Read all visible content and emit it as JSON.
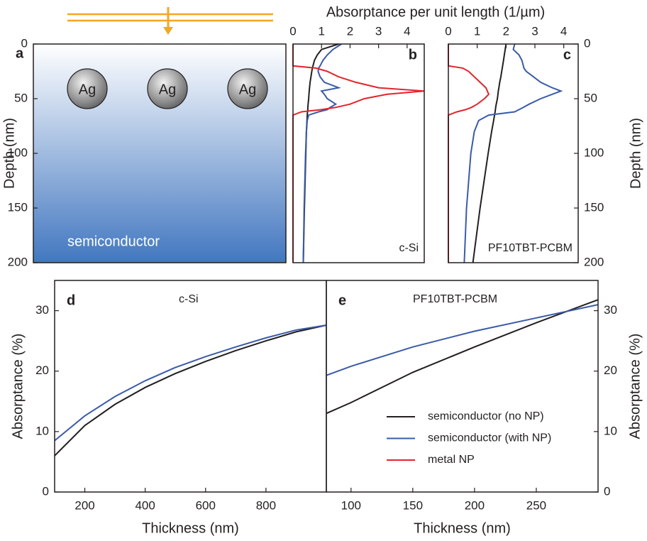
{
  "chart_data": [
    {
      "type": "schematic",
      "panel_label": "a",
      "ylabel": "Depth (nm)",
      "ylim": [
        0,
        200
      ],
      "yticks": [
        0,
        50,
        100,
        150,
        200
      ],
      "particles": [
        "Ag",
        "Ag",
        "Ag"
      ],
      "material": "semiconductor"
    },
    {
      "type": "profile",
      "panel_label": "b",
      "title": "c-Si",
      "xlabel": "Absorptance per unit length (1/µm)",
      "xlim": [
        0,
        4.6
      ],
      "xticks": [
        0,
        1,
        2,
        3,
        4
      ],
      "ylim": [
        0,
        200
      ],
      "depth": [
        0,
        5,
        10,
        15,
        20,
        22,
        25,
        30,
        35,
        40,
        43,
        46,
        50,
        55,
        58,
        60,
        62,
        65,
        70,
        80,
        100,
        150,
        200
      ],
      "series": [
        {
          "color": "#231f20",
          "values": [
            1.6,
            1.0,
            0.85,
            0.75,
            0.7,
            0.68,
            0.66,
            0.63,
            0.6,
            0.58,
            0.57,
            0.56,
            0.55,
            0.53,
            0.52,
            0.52,
            0.51,
            0.5,
            0.49,
            0.47,
            0.45,
            0.4,
            0.36
          ]
        },
        {
          "color": "#3a5ba8",
          "values": [
            1.7,
            1.4,
            1.2,
            1.05,
            0.95,
            0.9,
            0.88,
            0.95,
            1.1,
            1.6,
            1.0,
            1.1,
            1.2,
            1.5,
            1.3,
            1.2,
            0.9,
            0.55,
            0.5,
            0.47,
            0.44,
            0.39,
            0.36
          ]
        },
        {
          "color": "#e3242b",
          "values": [
            0,
            0,
            0,
            0,
            0,
            0.8,
            1.2,
            1.6,
            2.2,
            3.0,
            4.6,
            3.3,
            2.5,
            2.0,
            1.5,
            1.0,
            0.3,
            0,
            0,
            0,
            0,
            0,
            0
          ]
        }
      ]
    },
    {
      "type": "profile",
      "panel_label": "c",
      "title": "PF10TBT-PCBM",
      "ylabel": "Depth (nm)",
      "xlim": [
        0,
        4.5
      ],
      "xticks": [
        0,
        1,
        2,
        3,
        4
      ],
      "ylim": [
        0,
        200
      ],
      "yticks": [
        0,
        50,
        100,
        150,
        200
      ],
      "depth": [
        0,
        5,
        10,
        15,
        20,
        22,
        25,
        30,
        35,
        40,
        43,
        46,
        50,
        55,
        58,
        60,
        62,
        65,
        70,
        80,
        100,
        150,
        200
      ],
      "series": [
        {
          "color": "#231f20",
          "values": [
            2.0,
            1.97,
            1.94,
            1.91,
            1.88,
            1.87,
            1.85,
            1.82,
            1.78,
            1.75,
            1.73,
            1.72,
            1.7,
            1.66,
            1.64,
            1.63,
            1.62,
            1.6,
            1.57,
            1.5,
            1.38,
            1.1,
            0.85
          ]
        },
        {
          "color": "#3a5ba8",
          "values": [
            2.3,
            2.25,
            2.45,
            2.55,
            2.6,
            2.62,
            2.7,
            2.95,
            3.2,
            3.6,
            3.9,
            3.6,
            3.2,
            2.8,
            2.6,
            2.45,
            2.3,
            1.4,
            1.05,
            0.9,
            0.78,
            0.63,
            0.55
          ]
        },
        {
          "color": "#e3242b",
          "values": [
            0,
            0,
            0,
            0,
            0,
            0.5,
            0.7,
            0.9,
            1.1,
            1.3,
            1.35,
            1.4,
            1.25,
            1.0,
            0.8,
            0.6,
            0.3,
            0,
            0,
            0,
            0,
            0,
            0
          ]
        }
      ]
    },
    {
      "type": "line",
      "panel_label": "d",
      "title": "c-Si",
      "xlabel": "Thickness (nm)",
      "ylabel": "Absorptance (%)",
      "x": [
        100,
        200,
        300,
        400,
        500,
        600,
        700,
        800,
        900,
        1000
      ],
      "xlim": [
        100,
        1000
      ],
      "xticks": [
        200,
        400,
        600,
        800
      ],
      "ylim": [
        0,
        35
      ],
      "yticks": [
        0,
        10,
        20,
        30
      ],
      "series": [
        {
          "color": "#231f20",
          "values": [
            6,
            11,
            14.5,
            17.3,
            19.6,
            21.6,
            23.4,
            25,
            26.5,
            27.6
          ]
        },
        {
          "color": "#3a5ba8",
          "values": [
            8.5,
            12.6,
            15.8,
            18.4,
            20.6,
            22.4,
            24,
            25.5,
            26.8,
            27.6
          ]
        }
      ]
    },
    {
      "type": "line",
      "panel_label": "e",
      "title": "PF10TBT-PCBM",
      "xlabel": "Thickness (nm)",
      "ylabel": "Absorptance (%)",
      "x": [
        80,
        100,
        150,
        200,
        250,
        300
      ],
      "xlim": [
        80,
        300
      ],
      "xticks": [
        100,
        150,
        200,
        250
      ],
      "ylim": [
        0,
        35
      ],
      "yticks": [
        0,
        10,
        20,
        30
      ],
      "series": [
        {
          "color": "#231f20",
          "values": [
            13,
            14.8,
            19.8,
            24,
            28,
            31.8
          ]
        },
        {
          "color": "#3a5ba8",
          "values": [
            19.3,
            20.8,
            24,
            26.6,
            28.8,
            31
          ]
        }
      ],
      "legend": [
        {
          "name": "semiconductor (no NP)",
          "color": "#231f20"
        },
        {
          "name": "semiconductor (with NP)",
          "color": "#3a5ba8"
        },
        {
          "name": "metal NP",
          "color": "#e3242b"
        }
      ]
    }
  ]
}
